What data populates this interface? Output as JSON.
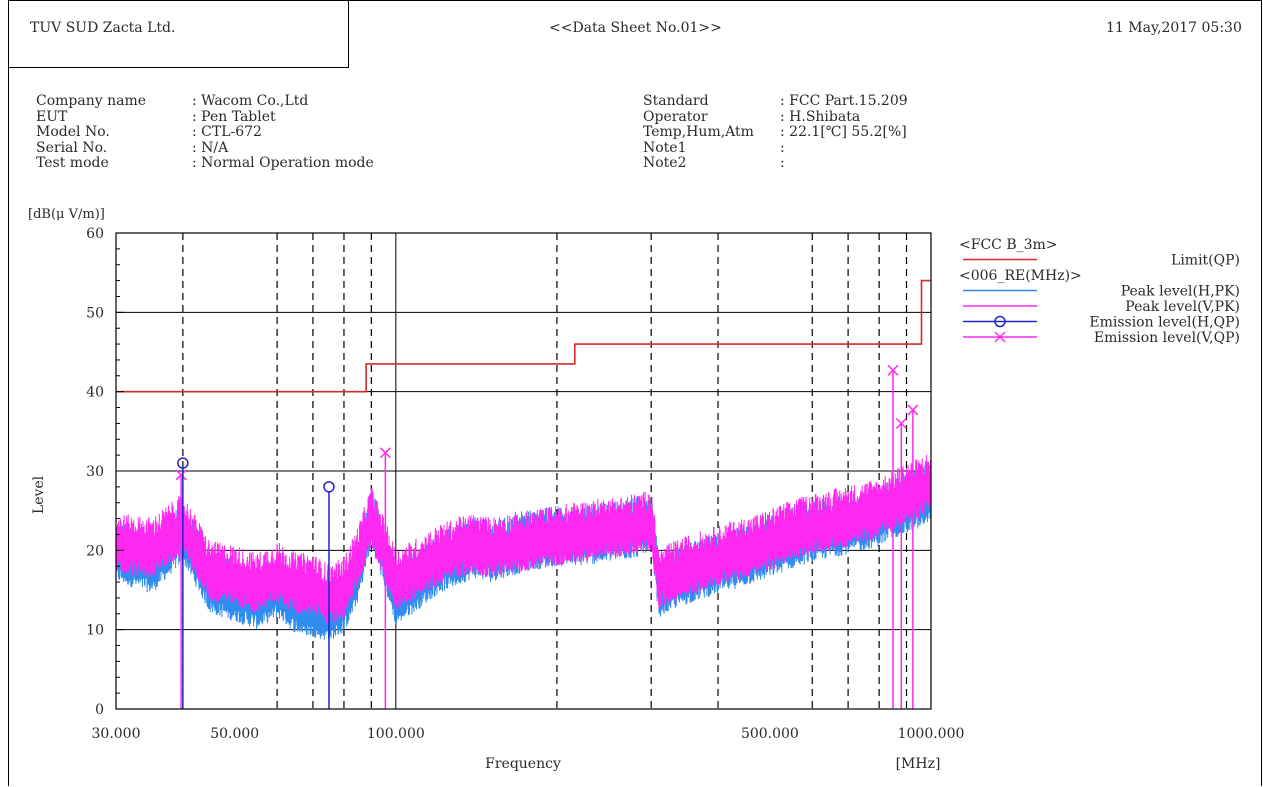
{
  "header": {
    "company": "TUV SUD Zacta Ltd.",
    "sheet_title": "<<Data Sheet No.01>>",
    "datetime": "11 May,2017 05:30"
  },
  "info_left": {
    "labels": [
      "Company name",
      "EUT",
      "Model No.",
      "Serial No.",
      "Test mode"
    ],
    "values": [
      ": Wacom Co.,Ltd",
      ": Pen Tablet",
      ": CTL-672",
      ": N/A",
      ": Normal Operation mode"
    ]
  },
  "info_right": {
    "labels": [
      "Standard",
      "Operator",
      "Temp,Hum,Atm",
      "Note1",
      "Note2"
    ],
    "values": [
      ": FCC Part.15.209",
      ": H.Shibata",
      ": 22.1[℃] 55.2[%]",
      ":",
      ":"
    ]
  },
  "chart_data": {
    "type": "line",
    "unit_label": "[dB(μ V/m)]",
    "xlabel": "Frequency",
    "xunit": "[MHz]",
    "ylabel": "Level",
    "xscale": "log",
    "xlim": [
      30,
      1000
    ],
    "ylim": [
      0,
      60
    ],
    "y_ticks": [
      0,
      10,
      20,
      30,
      40,
      50,
      60
    ],
    "x_tick_values": [
      30,
      50,
      100,
      500,
      1000
    ],
    "x_tick_labels": [
      "30.000",
      "50.000",
      "100.000",
      "500.000",
      "1000.000"
    ],
    "dashed_minor_gridlines_mhz": [
      40,
      60,
      70,
      80,
      90,
      200,
      300,
      400,
      600,
      700,
      800,
      900
    ],
    "grid": true,
    "legend_position": "right",
    "legend": [
      {
        "type": "group",
        "label": "<FCC B_3m>"
      },
      {
        "type": "line",
        "label": "Limit(QP)",
        "color": "#d62a2a"
      },
      {
        "type": "group",
        "label": "<006_RE(MHz)>"
      },
      {
        "type": "line",
        "label": "Peak level(H,PK)",
        "color": "#2f8cf0"
      },
      {
        "type": "line",
        "label": "Peak level(V,PK)",
        "color": "#ff28f0"
      },
      {
        "type": "marker",
        "marker": "circle",
        "label": "Emission level(H,QP)",
        "color": "#2323c8"
      },
      {
        "type": "marker",
        "marker": "x",
        "label": "Emission level(V,QP)",
        "color": "#ff28f0"
      }
    ],
    "limit_qp": {
      "color": "#d62a2a",
      "segments": [
        {
          "from": 30,
          "to": 88,
          "level": 40.0
        },
        {
          "from": 88,
          "to": 216,
          "level": 43.5
        },
        {
          "from": 216,
          "to": 960,
          "level": 46.0
        },
        {
          "from": 960,
          "to": 1000,
          "level": 54.0
        }
      ]
    },
    "peak_h_pk": {
      "color": "#2f8cf0",
      "envelope_mhz": [
        30,
        35,
        40,
        45,
        50,
        55,
        60,
        65,
        70,
        75,
        80,
        85,
        90,
        95,
        100,
        110,
        120,
        130,
        140,
        150,
        160,
        180,
        200,
        220,
        250,
        280,
        300,
        310,
        330,
        360,
        400,
        450,
        500,
        540,
        600,
        700,
        800,
        850,
        900,
        950,
        1000
      ],
      "envelope_db": [
        19.5,
        18,
        22,
        15.5,
        14.5,
        13.5,
        15,
        13,
        12.5,
        12,
        13,
        17,
        24,
        19,
        14,
        16,
        18,
        19,
        20,
        19.5,
        20,
        21,
        21.5,
        21.5,
        22,
        22.5,
        23.5,
        15,
        16,
        17,
        18,
        19,
        20,
        21,
        22,
        23,
        24,
        25,
        25.5,
        26,
        27.5
      ]
    },
    "peak_v_pk": {
      "color": "#ff28f0",
      "envelope_mhz": [
        30,
        35,
        40,
        45,
        50,
        55,
        60,
        65,
        70,
        75,
        80,
        85,
        90,
        95,
        100,
        110,
        120,
        130,
        140,
        150,
        160,
        180,
        200,
        220,
        250,
        280,
        300,
        310,
        330,
        360,
        400,
        450,
        500,
        540,
        600,
        700,
        800,
        850,
        900,
        950,
        1000
      ],
      "envelope_db": [
        20.5,
        20,
        23,
        17,
        16.5,
        15.5,
        17,
        15.5,
        15.5,
        14,
        15,
        19,
        24,
        20,
        16,
        17.5,
        19,
        20,
        20.5,
        20,
        20.5,
        21,
        21.5,
        22,
        22.5,
        23,
        23.5,
        16,
        17,
        18,
        19,
        20,
        21,
        22,
        23,
        24,
        25,
        26,
        27,
        27.5,
        28.5
      ]
    },
    "emission_h_qp": [
      {
        "freq_mhz": 40.0,
        "level": 31.0
      },
      {
        "freq_mhz": 75.0,
        "level": 28.0
      }
    ],
    "emission_v_qp": [
      {
        "freq_mhz": 39.7,
        "level": 29.5
      },
      {
        "freq_mhz": 95.6,
        "level": 32.3
      },
      {
        "freq_mhz": 849,
        "level": 42.7
      },
      {
        "freq_mhz": 880,
        "level": 36.0
      },
      {
        "freq_mhz": 925,
        "level": 37.7
      }
    ]
  }
}
